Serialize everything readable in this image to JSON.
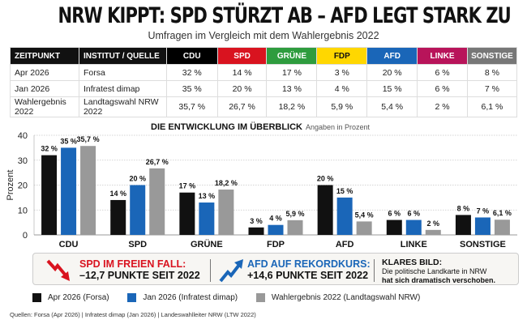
{
  "header": {
    "title": "NRW KIPPT: SPD STÜRZT AB – AFD LEGT STARK ZU",
    "subtitle": "Umfragen im Vergleich mit dem Wahlergebnis 2022"
  },
  "table": {
    "columns": [
      {
        "label": "ZEITPUNKT",
        "color": "#111111"
      },
      {
        "label": "INSTITUT / QUELLE",
        "color": "#111111"
      },
      {
        "label": "CDU",
        "color": "#000000"
      },
      {
        "label": "SPD",
        "color": "#d9131f"
      },
      {
        "label": "GRÜNE",
        "color": "#2e9c3e"
      },
      {
        "label": "FDP",
        "color": "#ffd700"
      },
      {
        "label": "AFD",
        "color": "#1a66b8"
      },
      {
        "label": "LINKE",
        "color": "#b8145a"
      },
      {
        "label": "SONSTIGE",
        "color": "#777777"
      }
    ],
    "rows": [
      [
        "Apr 2026",
        "Forsa",
        "32 %",
        "14 %",
        "17 %",
        "3 %",
        "20 %",
        "6 %",
        "8 %"
      ],
      [
        "Jan 2026",
        "Infratest dimap",
        "35 %",
        "20 %",
        "13 %",
        "4 %",
        "15 %",
        "6 %",
        "7 %"
      ],
      [
        "Wahlergebnis 2022",
        "Landtagswahl NRW 2022",
        "35,7 %",
        "26,7 %",
        "18,2 %",
        "5,9 %",
        "5,4 %",
        "2 %",
        "6,1 %"
      ]
    ]
  },
  "chart_data": {
    "type": "bar",
    "title": "DIE ENTWICKLUNG IM ÜBERBLICK",
    "subtitle": "Angaben in Prozent",
    "xlabel": "",
    "ylabel": "Prozent",
    "ylim": [
      0,
      40
    ],
    "yticks": [
      "0",
      "10",
      "20",
      "30",
      "40"
    ],
    "grid": true,
    "categories": [
      "CDU",
      "SPD",
      "GRÜNE",
      "FDP",
      "AFD",
      "LINKE",
      "SONSTIGE"
    ],
    "series": [
      {
        "name": "Apr 2026 (Forsa)",
        "color": "#111111",
        "values": [
          32,
          14,
          17,
          3,
          20,
          6,
          8
        ],
        "labels": [
          "32 %",
          "14 %",
          "17 %",
          "3 %",
          "20 %",
          "6 %",
          "8 %"
        ]
      },
      {
        "name": "Jan 2026 (Infratest dimap)",
        "color": "#1a66b8",
        "values": [
          35,
          20,
          13,
          4,
          15,
          6,
          7
        ],
        "labels": [
          "35 %",
          "20 %",
          "13 %",
          "4 %",
          "15 %",
          "6 %",
          "7 %"
        ]
      },
      {
        "name": "Wahlergebnis 2022 (Landtagswahl NRW)",
        "color": "#999999",
        "values": [
          35.7,
          26.7,
          18.2,
          5.9,
          5.4,
          2,
          6.1
        ],
        "labels": [
          "35,7 %",
          "26,7 %",
          "18,2 %",
          "5,9 %",
          "5,4 %",
          "2 %",
          "6,1 %"
        ]
      }
    ]
  },
  "callout": {
    "spd_headline": "SPD IM FREIEN FALL:",
    "spd_value": "–12,7 PUNKTE SEIT 2022",
    "afd_headline": "AFD AUF REKORDKURS:",
    "afd_value": "+14,6 PUNKTE SEIT 2022",
    "klar_headline": "KLARES BILD:",
    "klar_line1": "Die politische Landkarte in NRW",
    "klar_line2": "hat sich dramatisch verschoben.",
    "spd_color": "#d9131f",
    "afd_color": "#1a66b8"
  },
  "legend": [
    {
      "label": "Apr 2026 (Forsa)",
      "color": "#111111"
    },
    {
      "label": "Jan 2026 (Infratest dimap)",
      "color": "#1a66b8"
    },
    {
      "label": "Wahlergebnis 2022 (Landtagswahl NRW)",
      "color": "#999999"
    }
  ],
  "sources": "Quellen: Forsa (Apr 2026)  |  Infratest dimap (Jan 2026)  |  Landeswahlleiter NRW (LTW 2022)"
}
